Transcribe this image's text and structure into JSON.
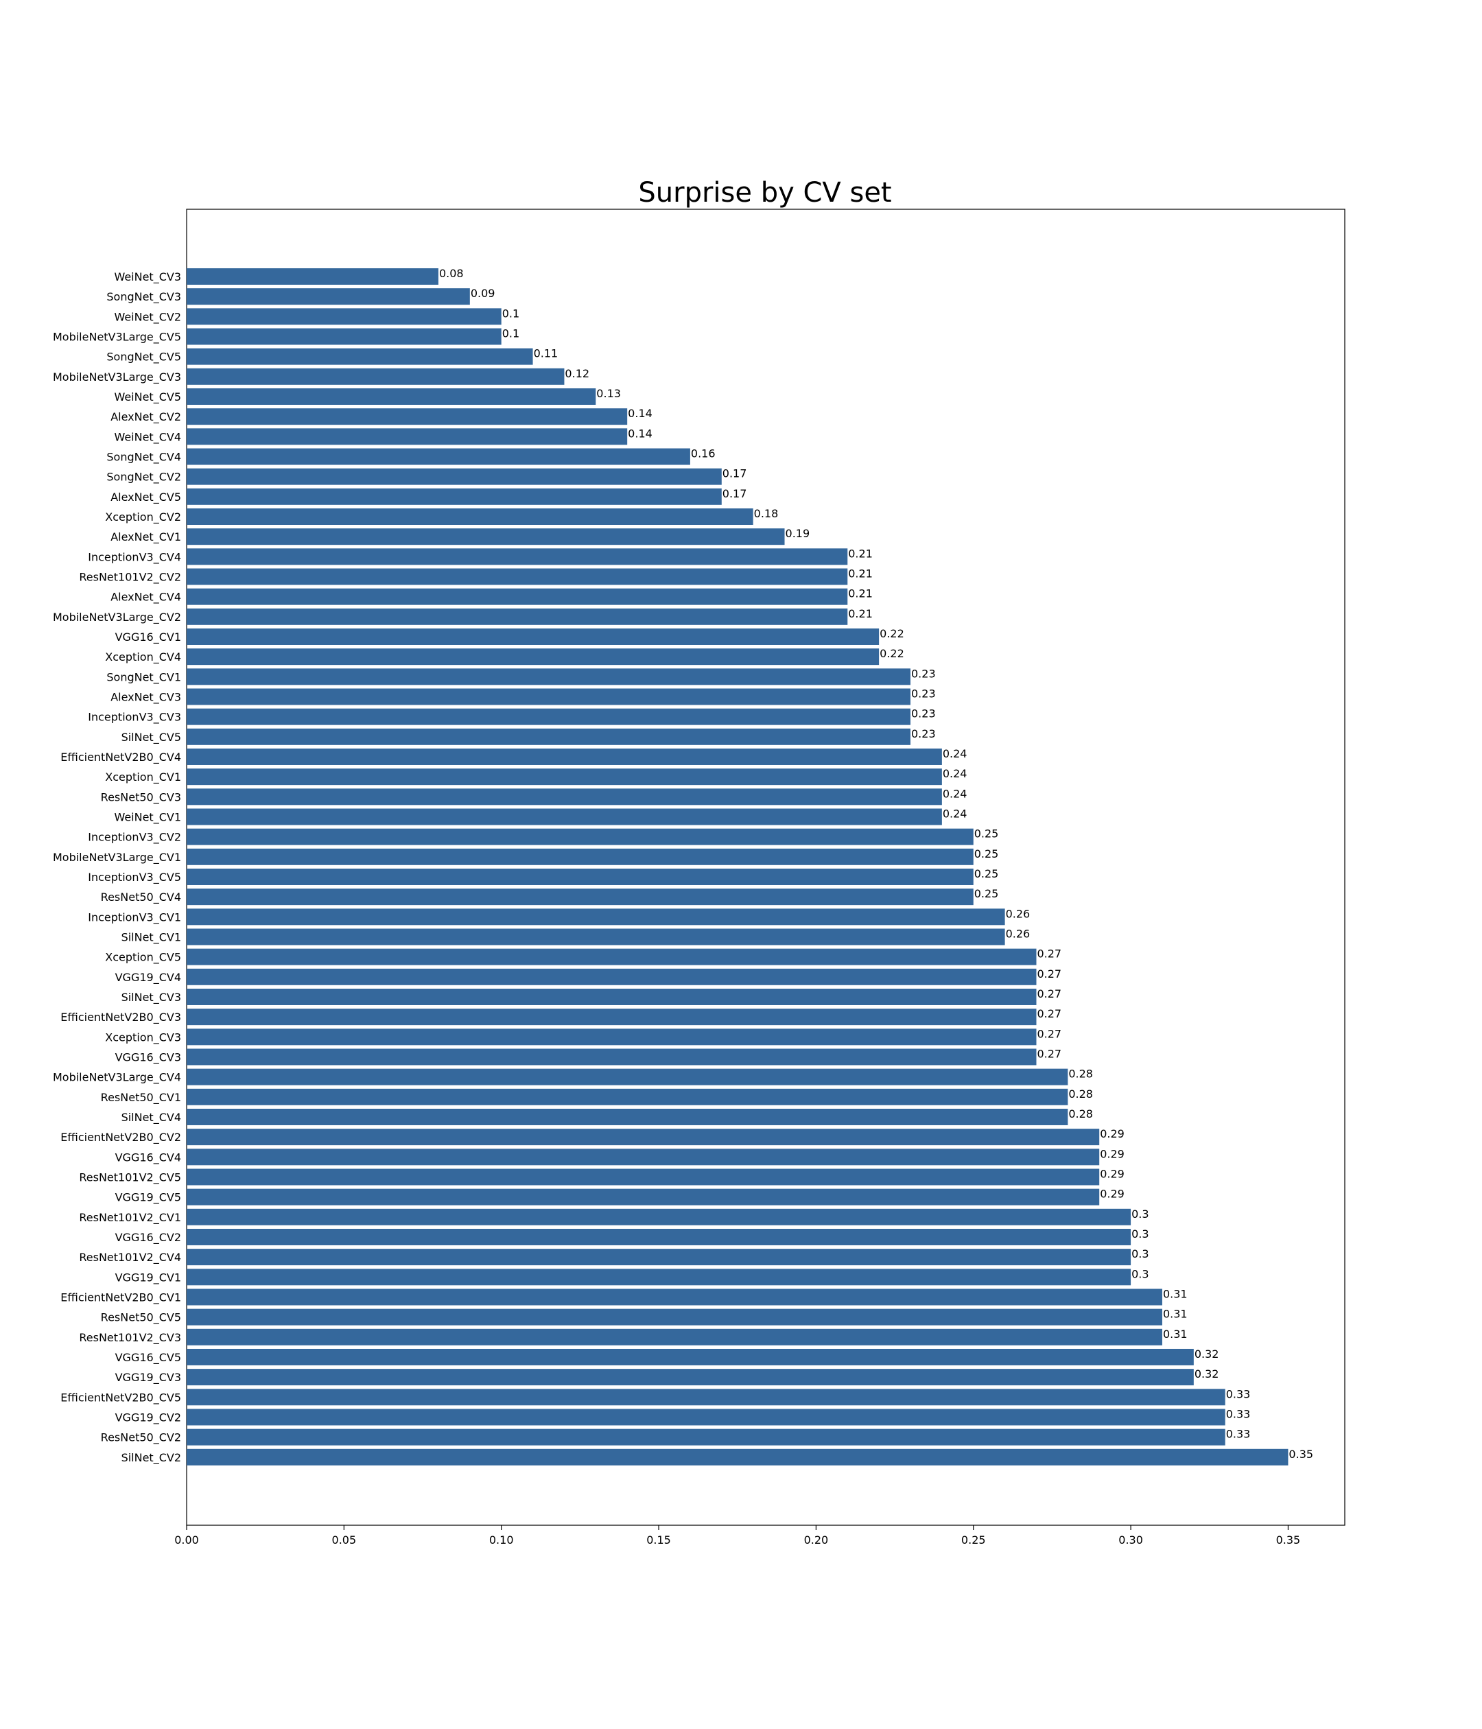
{
  "chart_data": {
    "type": "bar",
    "orientation": "horizontal",
    "title": "Surprise by CV set",
    "xlabel": "",
    "ylabel": "",
    "xlim": [
      0,
      0.368
    ],
    "xticks": [
      "0.00",
      "0.05",
      "0.10",
      "0.15",
      "0.20",
      "0.25",
      "0.30",
      "0.35"
    ],
    "grid": false,
    "bar_color": "#35689c",
    "categories": [
      "WeiNet_CV3",
      "SongNet_CV3",
      "WeiNet_CV2",
      "MobileNetV3Large_CV5",
      "SongNet_CV5",
      "MobileNetV3Large_CV3",
      "WeiNet_CV5",
      "AlexNet_CV2",
      "WeiNet_CV4",
      "SongNet_CV4",
      "SongNet_CV2",
      "AlexNet_CV5",
      "Xception_CV2",
      "AlexNet_CV1",
      "InceptionV3_CV4",
      "ResNet101V2_CV2",
      "AlexNet_CV4",
      "MobileNetV3Large_CV2",
      "VGG16_CV1",
      "Xception_CV4",
      "SongNet_CV1",
      "AlexNet_CV3",
      "InceptionV3_CV3",
      "SilNet_CV5",
      "EfficientNetV2B0_CV4",
      "Xception_CV1",
      "ResNet50_CV3",
      "WeiNet_CV1",
      "InceptionV3_CV2",
      "MobileNetV3Large_CV1",
      "InceptionV3_CV5",
      "ResNet50_CV4",
      "InceptionV3_CV1",
      "SilNet_CV1",
      "Xception_CV5",
      "VGG19_CV4",
      "SilNet_CV3",
      "EfficientNetV2B0_CV3",
      "Xception_CV3",
      "VGG16_CV3",
      "MobileNetV3Large_CV4",
      "ResNet50_CV1",
      "SilNet_CV4",
      "EfficientNetV2B0_CV2",
      "VGG16_CV4",
      "ResNet101V2_CV5",
      "VGG19_CV5",
      "ResNet101V2_CV1",
      "VGG16_CV2",
      "ResNet101V2_CV4",
      "VGG19_CV1",
      "EfficientNetV2B0_CV1",
      "ResNet50_CV5",
      "ResNet101V2_CV3",
      "VGG16_CV5",
      "VGG19_CV3",
      "EfficientNetV2B0_CV5",
      "VGG19_CV2",
      "ResNet50_CV2",
      "SilNet_CV2"
    ],
    "values": [
      0.08,
      0.09,
      0.1,
      0.1,
      0.11,
      0.12,
      0.13,
      0.14,
      0.14,
      0.16,
      0.17,
      0.17,
      0.18,
      0.19,
      0.21,
      0.21,
      0.21,
      0.21,
      0.22,
      0.22,
      0.23,
      0.23,
      0.23,
      0.23,
      0.24,
      0.24,
      0.24,
      0.24,
      0.25,
      0.25,
      0.25,
      0.25,
      0.26,
      0.26,
      0.27,
      0.27,
      0.27,
      0.27,
      0.27,
      0.27,
      0.28,
      0.28,
      0.28,
      0.29,
      0.29,
      0.29,
      0.29,
      0.3,
      0.3,
      0.3,
      0.3,
      0.31,
      0.31,
      0.31,
      0.32,
      0.32,
      0.33,
      0.33,
      0.33,
      0.35
    ],
    "data_labels": [
      "0.08",
      "0.09",
      "0.1",
      "0.1",
      "0.11",
      "0.12",
      "0.13",
      "0.14",
      "0.14",
      "0.16",
      "0.17",
      "0.17",
      "0.18",
      "0.19",
      "0.21",
      "0.21",
      "0.21",
      "0.21",
      "0.22",
      "0.22",
      "0.23",
      "0.23",
      "0.23",
      "0.23",
      "0.24",
      "0.24",
      "0.24",
      "0.24",
      "0.25",
      "0.25",
      "0.25",
      "0.25",
      "0.26",
      "0.26",
      "0.27",
      "0.27",
      "0.27",
      "0.27",
      "0.27",
      "0.27",
      "0.28",
      "0.28",
      "0.28",
      "0.29",
      "0.29",
      "0.29",
      "0.29",
      "0.3",
      "0.3",
      "0.3",
      "0.3",
      "0.31",
      "0.31",
      "0.31",
      "0.32",
      "0.32",
      "0.33",
      "0.33",
      "0.33",
      "0.35"
    ]
  }
}
